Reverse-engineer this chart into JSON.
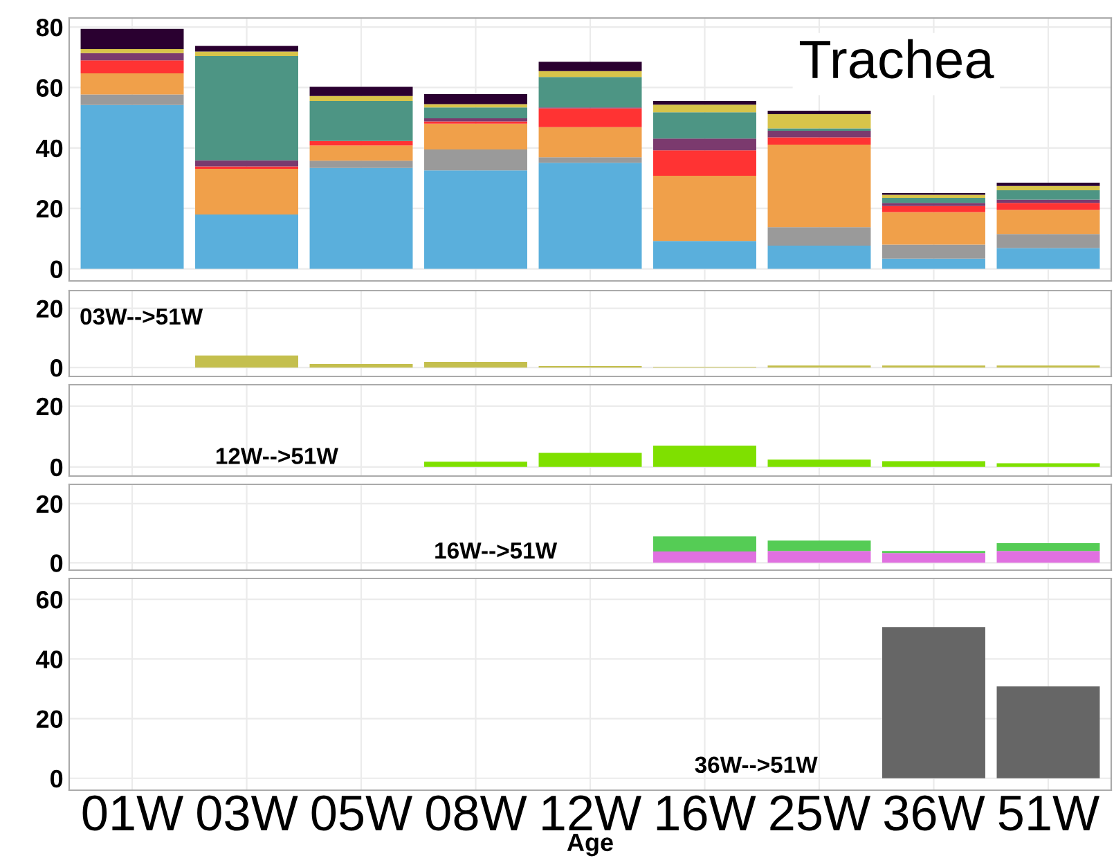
{
  "chart_data": [
    {
      "type": "bar",
      "stacked": true,
      "categories": [
        null,
        null,
        null,
        null,
        null,
        null,
        null,
        null,
        null
      ],
      "ylim": [
        -4,
        83
      ],
      "yticks": [
        0,
        20,
        40,
        60,
        80
      ],
      "grid": true,
      "tick_labels": "y",
      "annotations": [
        "Trachea"
      ],
      "series": [
        {
          "color": "#5aafdc",
          "values": [
            54.2,
            18,
            33.4,
            32.6,
            35.1,
            9.2,
            7.7,
            3.4,
            6.9
          ]
        },
        {
          "color": "#9a9a9a",
          "values": [
            3.5,
            0,
            2.4,
            6.9,
            1.8,
            0,
            6.1,
            4.6,
            4.6
          ]
        },
        {
          "color": "#f0a04a",
          "values": [
            7,
            15.1,
            5,
            8.5,
            10,
            21.6,
            27.3,
            10.8,
            8
          ]
        },
        {
          "color": "#ff3333",
          "values": [
            4.3,
            0.8,
            1.5,
            0.8,
            6.2,
            8.4,
            2.4,
            2,
            2.3
          ]
        },
        {
          "color": "#7b3a6e",
          "values": [
            2.4,
            2,
            0,
            1,
            0.3,
            3.9,
            2.2,
            1,
            1.1
          ]
        },
        {
          "color": "#4d9584",
          "values": [
            0,
            34.5,
            13.2,
            3.6,
            10.1,
            8.7,
            0.8,
            1.7,
            3.1
          ]
        },
        {
          "color": "#d8c44a",
          "values": [
            1.3,
            1.5,
            1.7,
            1.1,
            1.9,
            2.5,
            4.7,
            1,
            1.4
          ]
        },
        {
          "color": "#2a0030",
          "values": [
            6.7,
            1.9,
            3,
            3.3,
            3.1,
            1.2,
            1.1,
            0.6,
            1.1
          ]
        }
      ]
    },
    {
      "type": "bar",
      "categories": [
        null,
        null,
        null,
        null,
        null,
        null,
        null,
        null,
        null
      ],
      "ylim": [
        -3,
        26
      ],
      "yticks": [
        0,
        20
      ],
      "grid": true,
      "tick_labels": "y",
      "annotations": [
        "03W-->51W"
      ],
      "series": [
        {
          "color": "#c4bf4e",
          "values": [
            null,
            4.1,
            1.2,
            1.9,
            0.5,
            0.2,
            0.7,
            0.7,
            0.7
          ]
        }
      ]
    },
    {
      "type": "bar",
      "categories": [
        null,
        null,
        null,
        null,
        null,
        null,
        null,
        null,
        null
      ],
      "ylim": [
        -3,
        27
      ],
      "yticks": [
        0,
        20
      ],
      "grid": true,
      "tick_labels": "y",
      "annotations": [
        "12W-->51W"
      ],
      "series": [
        {
          "color": "#7fe000",
          "values": [
            null,
            null,
            null,
            1.7,
            4.6,
            7,
            2.4,
            1.9,
            1.2
          ]
        }
      ]
    },
    {
      "type": "bar",
      "stacked": true,
      "categories": [
        null,
        null,
        null,
        null,
        null,
        null,
        null,
        null,
        null
      ],
      "ylim": [
        -2.5,
        26.5
      ],
      "yticks": [
        0,
        20
      ],
      "grid": true,
      "tick_labels": "y",
      "annotations": [
        "16W-->51W"
      ],
      "series": [
        {
          "color": "#e070e0",
          "values": [
            null,
            null,
            null,
            null,
            null,
            3.8,
            4,
            3.3,
            4
          ]
        },
        {
          "color": "#55cc55",
          "values": [
            null,
            null,
            null,
            null,
            null,
            5.1,
            3.5,
            0.7,
            2.6
          ]
        }
      ]
    },
    {
      "type": "bar",
      "categories": [
        "01W",
        "03W",
        "05W",
        "08W",
        "12W",
        "16W",
        "25W",
        "36W",
        "51W"
      ],
      "ylim": [
        -4,
        67
      ],
      "yticks": [
        0,
        20,
        40,
        60
      ],
      "grid": true,
      "xlabel": "Age",
      "annotations": [
        "36W-->51W"
      ],
      "series": [
        {
          "color": "#666666",
          "values": [
            null,
            null,
            null,
            null,
            null,
            null,
            null,
            50.7,
            30.8
          ]
        }
      ]
    }
  ]
}
